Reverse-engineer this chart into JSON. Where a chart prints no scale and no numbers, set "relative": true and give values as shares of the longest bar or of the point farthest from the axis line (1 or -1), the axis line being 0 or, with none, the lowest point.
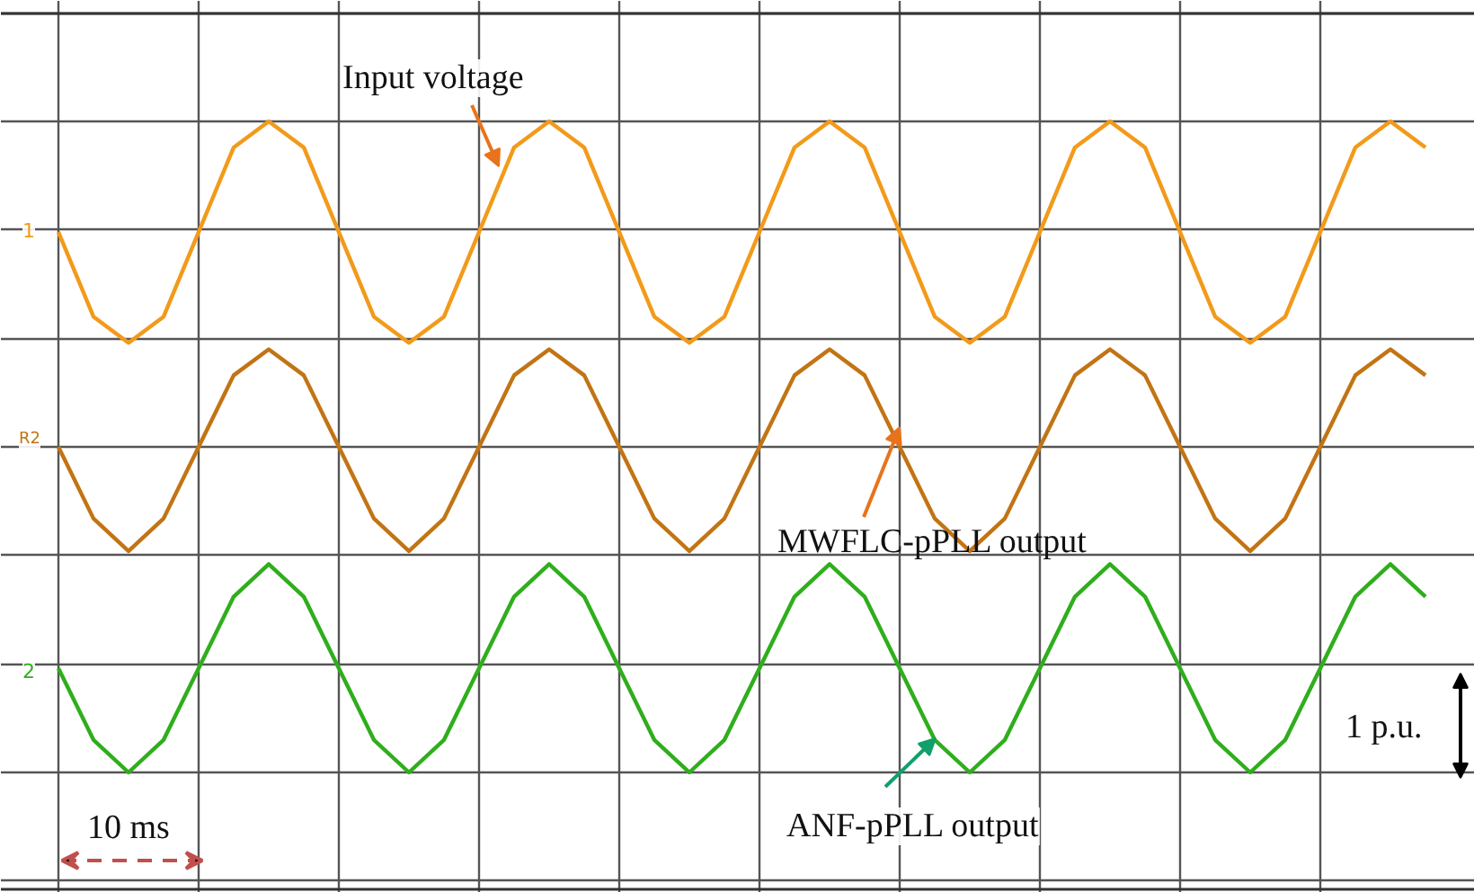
{
  "chart_data": {
    "type": "line",
    "relative": true,
    "grid": true,
    "tick_labels": false,
    "categories": [
      null,
      null,
      null,
      null,
      null,
      null,
      null,
      null,
      null,
      null,
      null,
      null,
      null,
      null,
      null,
      null,
      null,
      null,
      null,
      null,
      null,
      null,
      null,
      null,
      null,
      null,
      null,
      null,
      null,
      null,
      null,
      null,
      null,
      null,
      null,
      null,
      null,
      null,
      null,
      null
    ],
    "series": [
      {
        "name": "Input voltage",
        "color": "#f29a1a",
        "values": [
          0.83,
          0.7,
          0.66,
          0.7,
          0.83,
          0.96,
          1.0,
          0.96,
          0.83,
          0.7,
          0.66,
          0.7,
          0.83,
          0.96,
          1.0,
          0.96,
          0.83,
          0.7,
          0.66,
          0.7,
          0.83,
          0.96,
          1.0,
          0.96,
          0.83,
          0.7,
          0.66,
          0.7,
          0.83,
          0.96,
          1.0,
          0.96,
          0.83,
          0.7,
          0.66,
          0.7,
          0.83,
          0.96,
          1.0,
          0.96
        ]
      },
      {
        "name": "MWFLC-pPLL output",
        "color": "#c27414",
        "values": [
          0.5,
          0.39,
          0.34,
          0.39,
          0.5,
          0.61,
          0.65,
          0.61,
          0.5,
          0.39,
          0.34,
          0.39,
          0.5,
          0.61,
          0.65,
          0.61,
          0.5,
          0.39,
          0.34,
          0.39,
          0.5,
          0.61,
          0.65,
          0.61,
          0.5,
          0.39,
          0.34,
          0.39,
          0.5,
          0.61,
          0.65,
          0.61,
          0.5,
          0.39,
          0.34,
          0.39,
          0.5,
          0.61,
          0.65,
          0.61
        ]
      },
      {
        "name": "ANF-pPLL output",
        "color": "#2fae1c",
        "values": [
          0.16,
          0.05,
          0.0,
          0.05,
          0.16,
          0.27,
          0.32,
          0.27,
          0.16,
          0.05,
          0.0,
          0.05,
          0.16,
          0.27,
          0.32,
          0.27,
          0.16,
          0.05,
          0.0,
          0.05,
          0.16,
          0.27,
          0.32,
          0.27,
          0.16,
          0.05,
          0.0,
          0.05,
          0.16,
          0.27,
          0.32,
          0.27,
          0.16,
          0.05,
          0.0,
          0.05,
          0.16,
          0.27,
          0.32,
          0.27
        ]
      }
    ],
    "annotations": [
      "10 ms",
      "1 p.u.",
      "1",
      "R2",
      "2"
    ]
  }
}
